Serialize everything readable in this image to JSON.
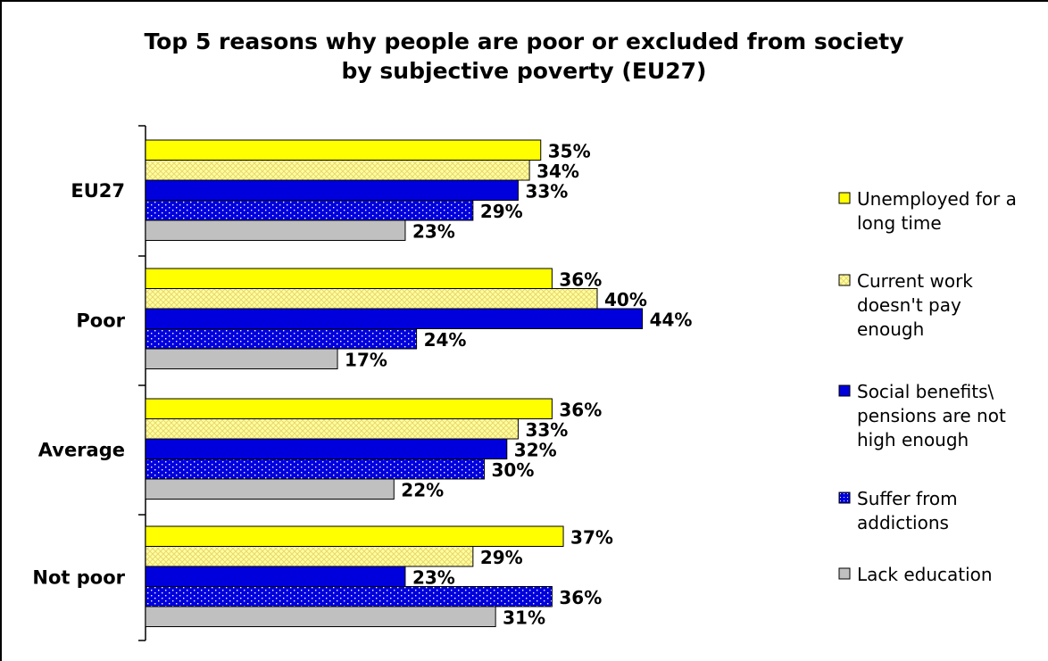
{
  "chart_data": {
    "type": "bar",
    "orientation": "horizontal",
    "title": "Top 5 reasons why people are poor or excluded from society by subjective poverty (EU27)",
    "title_lines": [
      "Top 5 reasons why people are poor or excluded from society",
      "by subjective poverty (EU27)"
    ],
    "categories": [
      "EU27",
      "Poor",
      "Average",
      "Not poor"
    ],
    "value_suffix": "%",
    "xlim": [
      0,
      100
    ],
    "grid": false,
    "legend_position": "right",
    "series": [
      {
        "name": "Unemployed for a long time",
        "legend_lines": [
          "Unemployed for a",
          "long time"
        ],
        "values": [
          35,
          36,
          36,
          37
        ],
        "color": "#ffff00",
        "pattern": "solid"
      },
      {
        "name": "Current work doesn't pay enough",
        "legend_lines": [
          "Current work",
          "doesn't pay",
          "enough"
        ],
        "values": [
          34,
          40,
          33,
          29
        ],
        "color": "#ffffa0",
        "pattern": "crosshatch"
      },
      {
        "name": "Social benefits\\ pensions are not high enough",
        "legend_lines": [
          "Social benefits\\",
          "pensions are not",
          "high enough"
        ],
        "values": [
          33,
          44,
          32,
          23
        ],
        "color": "#0000dd",
        "pattern": "solid"
      },
      {
        "name": "Suffer from addictions",
        "legend_lines": [
          "Suffer from",
          "addictions"
        ],
        "values": [
          29,
          24,
          30,
          36
        ],
        "color": "#0000dd",
        "pattern": "dots"
      },
      {
        "name": "Lack education",
        "legend_lines": [
          "Lack education"
        ],
        "values": [
          23,
          17,
          22,
          31
        ],
        "color": "#c0c0c0",
        "pattern": "solid"
      }
    ]
  }
}
